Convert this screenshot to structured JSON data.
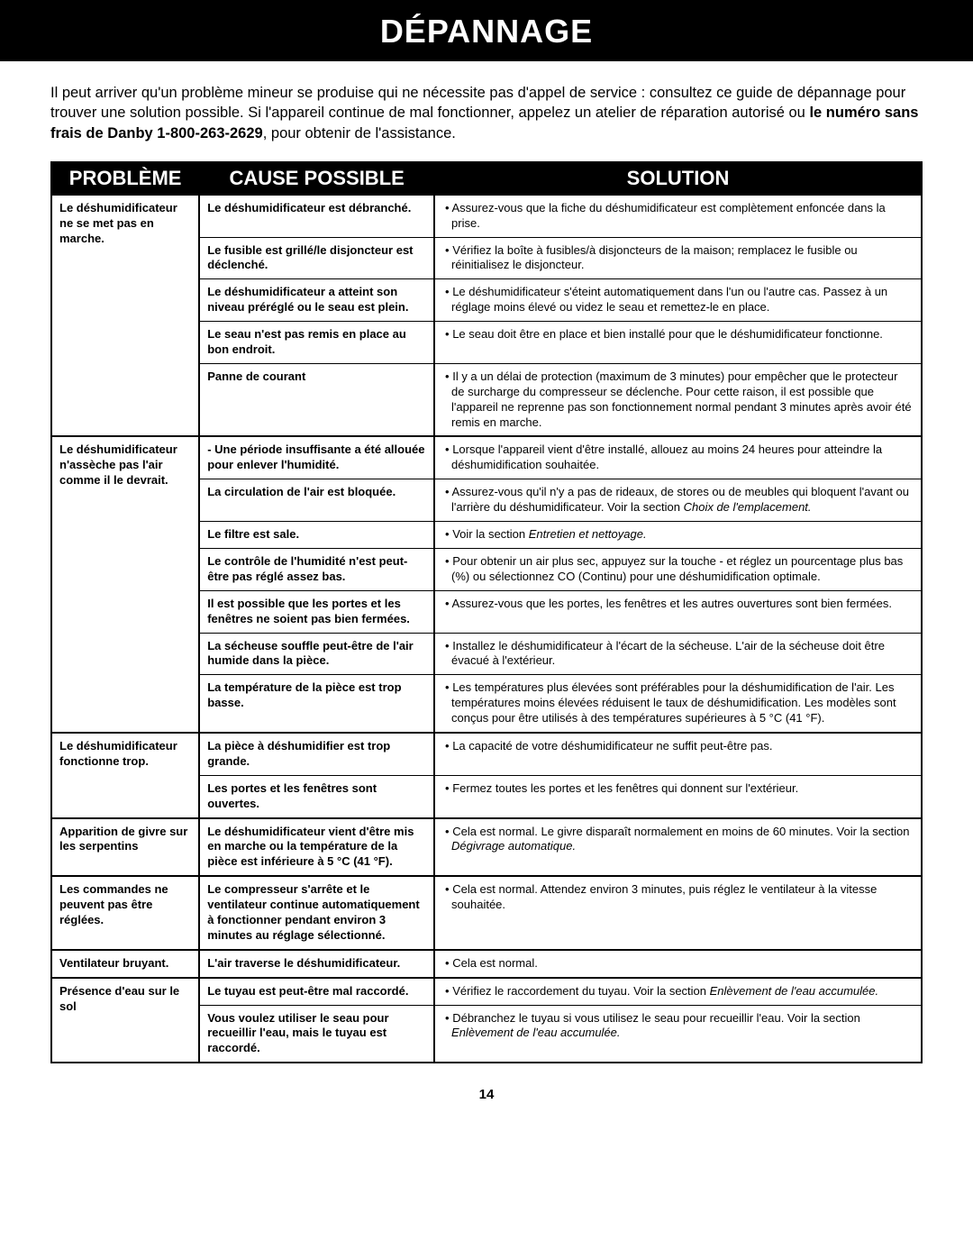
{
  "title": "DÉPANNAGE",
  "intro": {
    "text1": "Il peut arriver qu'un problème mineur se produise qui ne nécessite pas d'appel de service : consultez ce guide de dépannage pour trouver une solution possible.  Si l'appareil continue de mal fonctionner, appelez un atelier de réparation autorisé ou  ",
    "bold": "le numéro sans frais de Danby 1-800-263-2629",
    "text2": ", pour obtenir de l'assistance."
  },
  "headers": {
    "c1": "PROBLÈME",
    "c2": "CAUSE POSSIBLE",
    "c3": "SOLUTION"
  },
  "groups": [
    {
      "problem": "Le déshumidificateur ne se met pas en marche.",
      "rows": [
        {
          "cause": "Le déshumidificateur est débranché.",
          "solution": [
            {
              "text": "Assurez-vous que la fiche du déshumidificateur est complètement enfoncée dans la prise."
            }
          ]
        },
        {
          "cause": "Le fusible est grillé/le disjoncteur est déclenché.",
          "solution": [
            {
              "text": "Vérifiez la boîte à fusibles/à disjoncteurs de la maison; remplacez le fusible ou réinitialisez le disjoncteur."
            }
          ]
        },
        {
          "cause": "Le déshumidificateur a atteint son niveau préréglé ou le seau est plein.",
          "solution": [
            {
              "text": "Le déshumidificateur s'éteint automatiquement dans l'un ou l'autre cas.   Passez à un réglage moins élevé ou videz le seau et remettez-le en place."
            }
          ]
        },
        {
          "cause": "Le seau n'est pas remis en place au bon endroit.",
          "solution": [
            {
              "text": "Le seau doit être en place et bien installé pour que le déshumidificateur fonctionne."
            }
          ]
        },
        {
          "cause": "Panne de courant",
          "solution": [
            {
              "text": "Il y a un délai de protection (maximum de 3 minutes) pour empêcher que le protecteur de surcharge du compresseur se déclenche. Pour cette raison, il est possible que l'appareil ne reprenne pas son fonctionnement normal pendant 3 minutes après avoir été remis en marche."
            }
          ]
        }
      ]
    },
    {
      "problem": "Le déshumidificateur n'assèche pas l'air comme il le devrait.",
      "rows": [
        {
          "cause": "- Une période insuffisante a été allouée pour enlever l'humidité.",
          "solution": [
            {
              "text": "Lorsque l'appareil vient d'être installé, allouez au moins 24 heures pour atteindre la déshumidification souhaitée."
            }
          ]
        },
        {
          "cause": "La circulation de l'air est bloquée.",
          "solution": [
            {
              "text": "Assurez-vous qu'il n'y a pas de rideaux, de stores ou de meubles qui bloquent l'avant ou l'arrière du déshumidificateur. Voir la section ",
              "italic": "Choix de l'emplacement."
            }
          ]
        },
        {
          "cause": "Le filtre est sale.",
          "solution": [
            {
              "text": "Voir la section ",
              "italic": "Entretien et nettoyage."
            }
          ]
        },
        {
          "cause": "Le contrôle de l'humidité n'est peut-être pas réglé assez bas.",
          "solution": [
            {
              "text": "Pour obtenir un air plus sec, appuyez sur la touche - et réglez un pourcentage plus bas (%) ou sélectionnez CO (Continu) pour une déshumidification optimale."
            }
          ]
        },
        {
          "cause": "Il est possible que les portes et les fenêtres ne soient pas bien fermées.",
          "solution": [
            {
              "text": "Assurez-vous que les portes, les fenêtres et les autres ouvertures sont bien fermées."
            }
          ]
        },
        {
          "cause": "La sécheuse souffle peut-être de l'air humide dans la pièce.",
          "solution": [
            {
              "text": "Installez le déshumidificateur à l'écart de la sécheuse. L'air de la sécheuse doit être évacué à l'extérieur."
            }
          ]
        },
        {
          "cause": "La température de la pièce est trop basse.",
          "solution": [
            {
              "text": "Les températures plus élevées sont préférables pour la déshumidification de l'air. Les températures moins élevées réduisent le taux de déshumidification. Les modèles sont conçus pour être utilisés à des températures supérieures à 5 °C (41 °F)."
            }
          ]
        }
      ]
    },
    {
      "problem": "Le déshumidificateur fonctionne trop.",
      "rows": [
        {
          "cause": "La pièce à déshumidifier est trop grande.",
          "solution": [
            {
              "text": "La capacité de votre déshumidificateur ne suffit peut-être pas."
            }
          ]
        },
        {
          "cause": "Les portes et les fenêtres sont ouvertes.",
          "solution": [
            {
              "text": "Fermez toutes les portes et les fenêtres qui donnent sur l'extérieur."
            }
          ]
        }
      ]
    },
    {
      "problem": "Apparition de givre sur les serpentins",
      "rows": [
        {
          "cause": "Le déshumidificateur vient d'être mis en marche ou la température de la pièce est inférieure à 5 °C (41 °F).",
          "solution": [
            {
              "text": "Cela est normal. Le givre disparaît normalement en moins de 60 minutes. Voir la section  ",
              "italic": "Dégivrage automatique."
            }
          ]
        }
      ]
    },
    {
      "problem": "Les commandes ne peuvent pas être réglées.",
      "rows": [
        {
          "cause": "Le compresseur s'arrête et le ventilateur continue automatiquement à fonctionner pendant environ 3 minutes au réglage sélectionné.",
          "solution": [
            {
              "text": "Cela est normal. Attendez environ 3 minutes, puis réglez le ventilateur à la vitesse souhaitée."
            }
          ]
        }
      ]
    },
    {
      "problem": "Ventilateur bruyant.",
      "rows": [
        {
          "cause": "L'air traverse le déshumidificateur.",
          "solution": [
            {
              "text": "Cela est normal."
            }
          ]
        }
      ]
    },
    {
      "problem": "Présence d'eau sur le sol",
      "rows": [
        {
          "cause": "Le tuyau est peut-être mal raccordé.",
          "solution": [
            {
              "text": "Vérifiez le raccordement du tuyau. Voir la section ",
              "italic": "Enlèvement de l'eau accumulée."
            }
          ]
        },
        {
          "cause": "Vous voulez utiliser le seau pour recueillir l'eau, mais le tuyau est raccordé.",
          "solution": [
            {
              "text": "Débranchez le tuyau si vous utilisez le seau pour recueillir l'eau. Voir la section ",
              "italic": "Enlèvement de l'eau accumulée."
            }
          ]
        }
      ]
    }
  ],
  "pageNumber": "14"
}
